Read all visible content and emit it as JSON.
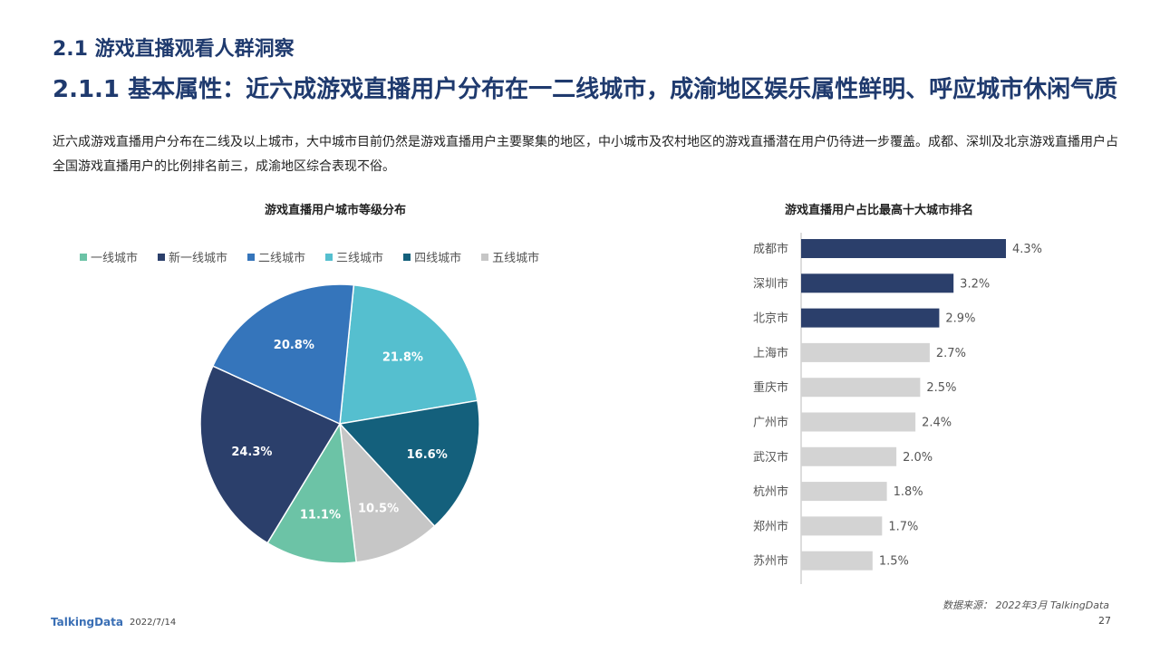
{
  "header": {
    "section_title": "2.1 游戏直播观看人群洞察",
    "sub_title": "2.1.1 基本属性：近六成游戏直播用户分布在一二线城市，成渝地区娱乐属性鲜明、呼应城市休闲气质",
    "intro": "近六成游戏直播用户分布在二线及以上城市，大中城市目前仍然是游戏直播用户主要聚集的地区，中小城市及农村地区的游戏直播潜在用户仍待进一步覆盖。成都、深圳及北京游戏直播用户占全国游戏直播用户的比例排名前三，成渝地区综合表现不俗。"
  },
  "chart_data": [
    {
      "type": "pie",
      "title": "游戏直播用户城市等级分布",
      "legend_position": "top",
      "categories": [
        "一线城市",
        "新一线城市",
        "二线城市",
        "三线城市",
        "四线城市",
        "五线城市"
      ],
      "values": [
        11.1,
        24.3,
        20.8,
        21.8,
        16.6,
        10.5
      ],
      "labels": [
        "11.1%",
        "24.3%",
        "20.8%",
        "21.8%",
        "16.6%",
        "10.5%"
      ],
      "colors": [
        "#6cc3a6",
        "#2b3f6b",
        "#3575bb",
        "#55bfcf",
        "#14607c",
        "#c6c6c6"
      ],
      "order_clockwise_from_top": [
        "三线城市",
        "四线城市",
        "五线城市",
        "一线城市",
        "新一线城市",
        "二线城市"
      ]
    },
    {
      "type": "bar",
      "orientation": "horizontal",
      "title": "游戏直播用户占比最高十大城市排名",
      "categories": [
        "成都市",
        "深圳市",
        "北京市",
        "上海市",
        "重庆市",
        "广州市",
        "武汉市",
        "杭州市",
        "郑州市",
        "苏州市"
      ],
      "values": [
        4.3,
        3.2,
        2.9,
        2.7,
        2.5,
        2.4,
        2.0,
        1.8,
        1.7,
        1.5
      ],
      "labels": [
        "4.3%",
        "3.2%",
        "2.9%",
        "2.7%",
        "2.5%",
        "2.4%",
        "2.0%",
        "1.8%",
        "1.7%",
        "1.5%"
      ],
      "highlight_count": 3,
      "highlight_color": "#2b3f6b",
      "base_color": "#d3d3d3",
      "xlim": [
        0,
        4.3
      ]
    }
  ],
  "footer": {
    "source": "数据来源： 2022年3月 TalkingData",
    "logo": "TalkingData",
    "date": "2022/7/14",
    "page": "27"
  }
}
